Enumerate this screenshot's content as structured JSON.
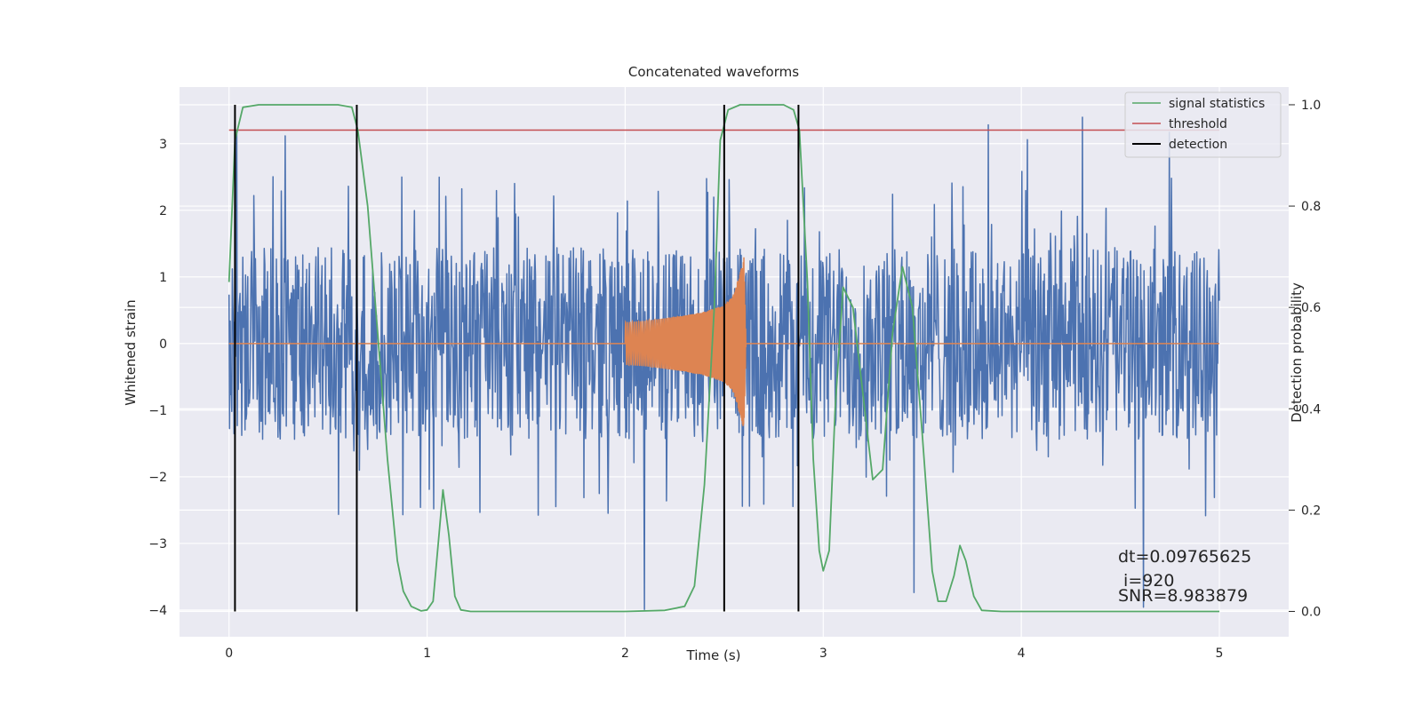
{
  "chart_data": {
    "type": "line",
    "title": "Concatenated waveforms",
    "xlabel": "Time (s)",
    "ylabel": "Whitened strain",
    "y2label": "Detection probability",
    "xlim": [
      -0.25,
      5.35
    ],
    "ylim": [
      -4.4,
      3.85
    ],
    "y2lim": [
      -0.05,
      1.035
    ],
    "xticks": [
      0,
      1,
      2,
      3,
      4,
      5
    ],
    "xtick_labels": [
      "0",
      "1",
      "2",
      "3",
      "4",
      "5"
    ],
    "yticks": [
      3,
      2,
      1,
      0,
      -1,
      -2,
      -3,
      -4
    ],
    "ytick_labels": [
      "3",
      "2",
      "1",
      "0",
      "−1",
      "−2",
      "−3",
      "−4"
    ],
    "y2ticks": [
      1.0,
      0.8,
      0.6,
      0.4,
      0.2,
      0.0
    ],
    "y2tick_labels": [
      "1.0",
      "0.8",
      "0.6",
      "0.4",
      "0.2",
      "0.0"
    ],
    "grid": true,
    "legend_position": "top-right",
    "colors": {
      "background": "#eaeaf2",
      "strain": "#4c72b0",
      "injection": "#dd8452",
      "signal_statistics": "#55a868",
      "threshold": "#c44e52",
      "detection": "#000000"
    },
    "series": [
      {
        "name": "",
        "axis": "left",
        "kind": "noise",
        "x_range": [
          0,
          5
        ],
        "typical_amplitude": 1.2,
        "peak_min": -4.2,
        "peak_max": 3.5
      },
      {
        "name": "",
        "axis": "left",
        "kind": "chirp",
        "x": [
          2.0,
          2.1,
          2.2,
          2.3,
          2.4,
          2.5,
          2.55,
          2.6,
          2.61
        ],
        "envelope": [
          0.32,
          0.34,
          0.38,
          0.42,
          0.48,
          0.58,
          0.75,
          1.3,
          0.0
        ]
      },
      {
        "name": "signal statistics",
        "axis": "right",
        "x": [
          0.0,
          0.03,
          0.07,
          0.15,
          0.55,
          0.62,
          0.65,
          0.7,
          0.75,
          0.8,
          0.85,
          0.88,
          0.92,
          0.97,
          1.0,
          1.03,
          1.06,
          1.08,
          1.11,
          1.14,
          1.17,
          1.22,
          1.6,
          2.0,
          2.2,
          2.3,
          2.35,
          2.4,
          2.45,
          2.48,
          2.52,
          2.58,
          2.8,
          2.85,
          2.88,
          2.92,
          2.95,
          2.98,
          3.0,
          3.03,
          3.06,
          3.1,
          3.15,
          3.2,
          3.25,
          3.3,
          3.35,
          3.4,
          3.45,
          3.5,
          3.55,
          3.58,
          3.62,
          3.66,
          3.69,
          3.72,
          3.76,
          3.8,
          3.9,
          4.5,
          5.0
        ],
        "y": [
          0.65,
          0.93,
          0.995,
          1.0,
          1.0,
          0.995,
          0.95,
          0.8,
          0.55,
          0.3,
          0.1,
          0.04,
          0.01,
          0.001,
          0.003,
          0.02,
          0.15,
          0.24,
          0.15,
          0.03,
          0.003,
          0.0,
          0.0,
          0.0,
          0.002,
          0.01,
          0.05,
          0.25,
          0.6,
          0.93,
          0.99,
          1.0,
          1.0,
          0.99,
          0.95,
          0.65,
          0.3,
          0.12,
          0.08,
          0.12,
          0.4,
          0.64,
          0.6,
          0.43,
          0.26,
          0.28,
          0.55,
          0.68,
          0.6,
          0.35,
          0.08,
          0.02,
          0.02,
          0.07,
          0.13,
          0.1,
          0.03,
          0.002,
          0.0,
          0.0,
          0.0
        ]
      },
      {
        "name": "threshold",
        "axis": "right",
        "x": [
          0,
          5
        ],
        "y": [
          0.95,
          0.95
        ]
      },
      {
        "name": "detection",
        "axis": "right",
        "type": "vlines",
        "x": [
          0.03,
          0.645,
          2.5,
          2.875
        ],
        "y_range": [
          0.0,
          1.0
        ]
      }
    ],
    "annotations": [
      {
        "text": "dt=0.09765625"
      },
      {
        "text": " i=920"
      },
      {
        "text": "SNR=8.983879"
      }
    ]
  }
}
